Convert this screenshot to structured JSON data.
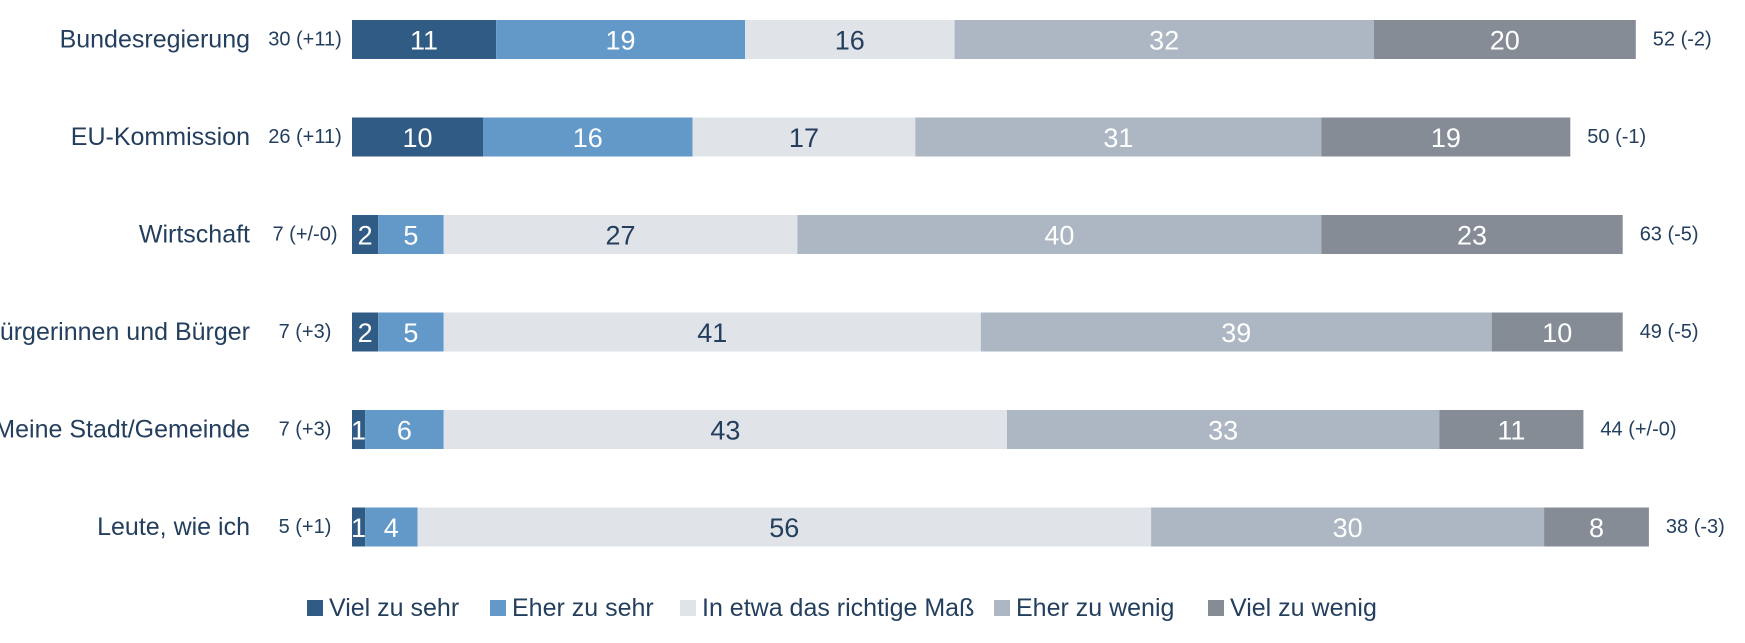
{
  "chart_data": {
    "type": "bar",
    "orientation": "horizontal",
    "stacked": true,
    "categories": [
      "Bundesregierung",
      "EU-Kommission",
      "Wirtschaft",
      "Bürgerinnen und Bürger",
      "Meine Stadt/Gemeinde",
      "Leute, wie ich"
    ],
    "series": [
      {
        "name": "Viel zu sehr",
        "color": "#2f5b84",
        "text_color": "#ffffff",
        "values": [
          11,
          10,
          2,
          2,
          1,
          1
        ]
      },
      {
        "name": "Eher zu sehr",
        "color": "#6399c8",
        "text_color": "#ffffff",
        "values": [
          19,
          16,
          5,
          5,
          6,
          4
        ]
      },
      {
        "name": "In etwa das richtige Maß",
        "color": "#e0e3e8",
        "text_color": "#243f5e",
        "values": [
          16,
          17,
          27,
          41,
          43,
          56
        ]
      },
      {
        "name": "Eher zu wenig",
        "color": "#adb6c3",
        "text_color": "#ffffff",
        "values": [
          32,
          31,
          40,
          39,
          33,
          30
        ]
      },
      {
        "name": "Viel zu wenig",
        "color": "#868c96",
        "text_color": "#ffffff",
        "values": [
          20,
          19,
          23,
          10,
          11,
          8
        ]
      }
    ],
    "left_totals": [
      "30 (+11)",
      "26 (+11)",
      "7 (+/-0)",
      "7 (+3)",
      "7 (+3)",
      "5 (+1)"
    ],
    "right_totals": [
      "52 (-2)",
      "50 (-1)",
      "63 (-5)",
      "49 (-5)",
      "44 (+/-0)",
      "38 (-3)"
    ],
    "legend_position": "bottom",
    "grid": false
  }
}
